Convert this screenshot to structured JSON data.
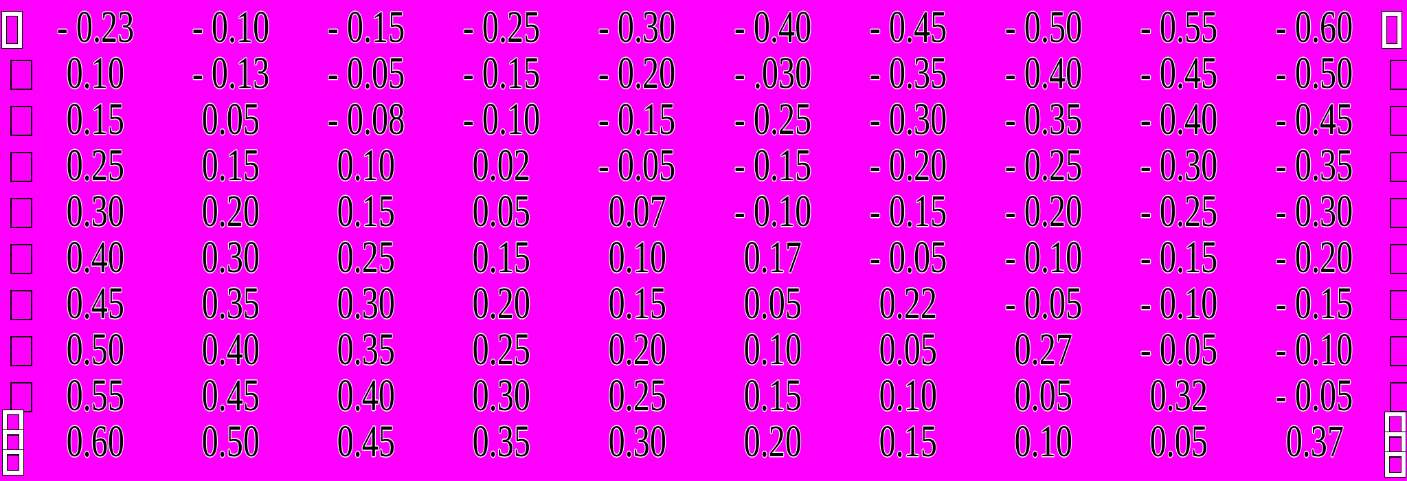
{
  "colors": {
    "background": "#ff00ff",
    "text": "#000000",
    "halo": "#ffffff"
  },
  "matrix": {
    "description": "10x10 numeric matrix enclosed in broken (missing-glyph) brackets",
    "rows": [
      [
        "- 0.23",
        "- 0.10",
        "- 0.15",
        "- 0.25",
        "- 0.30",
        "- 0.40",
        "- 0.45",
        "- 0.50",
        "- 0.55",
        "- 0.60"
      ],
      [
        "0.10",
        "- 0.13",
        "- 0.05",
        "- 0.15",
        "- 0.20",
        "- .030",
        "- 0.35",
        "- 0.40",
        "- 0.45",
        "- 0.50"
      ],
      [
        "0.15",
        "0.05",
        "- 0.08",
        "- 0.10",
        "- 0.15",
        "- 0.25",
        "- 0.30",
        "- 0.35",
        "- 0.40",
        "- 0.45"
      ],
      [
        "0.25",
        "0.15",
        "0.10",
        "0.02",
        "- 0.05",
        "- 0.15",
        "- 0.20",
        "- 0.25",
        "- 0.30",
        "- 0.35"
      ],
      [
        "0.30",
        "0.20",
        "0.15",
        "0.05",
        "0.07",
        "- 0.10",
        "- 0.15",
        "- 0.20",
        "- 0.25",
        "- 0.30"
      ],
      [
        "0.40",
        "0.30",
        "0.25",
        "0.15",
        "0.10",
        "0.17",
        "- 0.05",
        "- 0.10",
        "- 0.15",
        "- 0.20"
      ],
      [
        "0.45",
        "0.35",
        "0.30",
        "0.20",
        "0.15",
        "0.05",
        "0.22",
        "- 0.05",
        "- 0.10",
        "- 0.15"
      ],
      [
        "0.50",
        "0.40",
        "0.35",
        "0.25",
        "0.20",
        "0.10",
        "0.05",
        "0.27",
        "- 0.05",
        "- 0.10"
      ],
      [
        "0.55",
        "0.45",
        "0.40",
        "0.30",
        "0.25",
        "0.15",
        "0.10",
        "0.05",
        "0.32",
        "- 0.05"
      ],
      [
        "0.60",
        "0.50",
        "0.45",
        "0.35",
        "0.30",
        "0.20",
        "0.15",
        "0.10",
        "0.05",
        "0.37"
      ]
    ]
  },
  "brackets": {
    "left_top_glyph": "missing-glyph-white-box",
    "left_side_glyph": "missing-glyph-hollow-box",
    "left_bottom_glyph": "missing-glyph-white-box-stack",
    "right_top_glyph": "missing-glyph-white-box",
    "right_side_glyph": "missing-glyph-hollow-box",
    "right_bottom_glyph": "missing-glyph-white-box-stack"
  }
}
